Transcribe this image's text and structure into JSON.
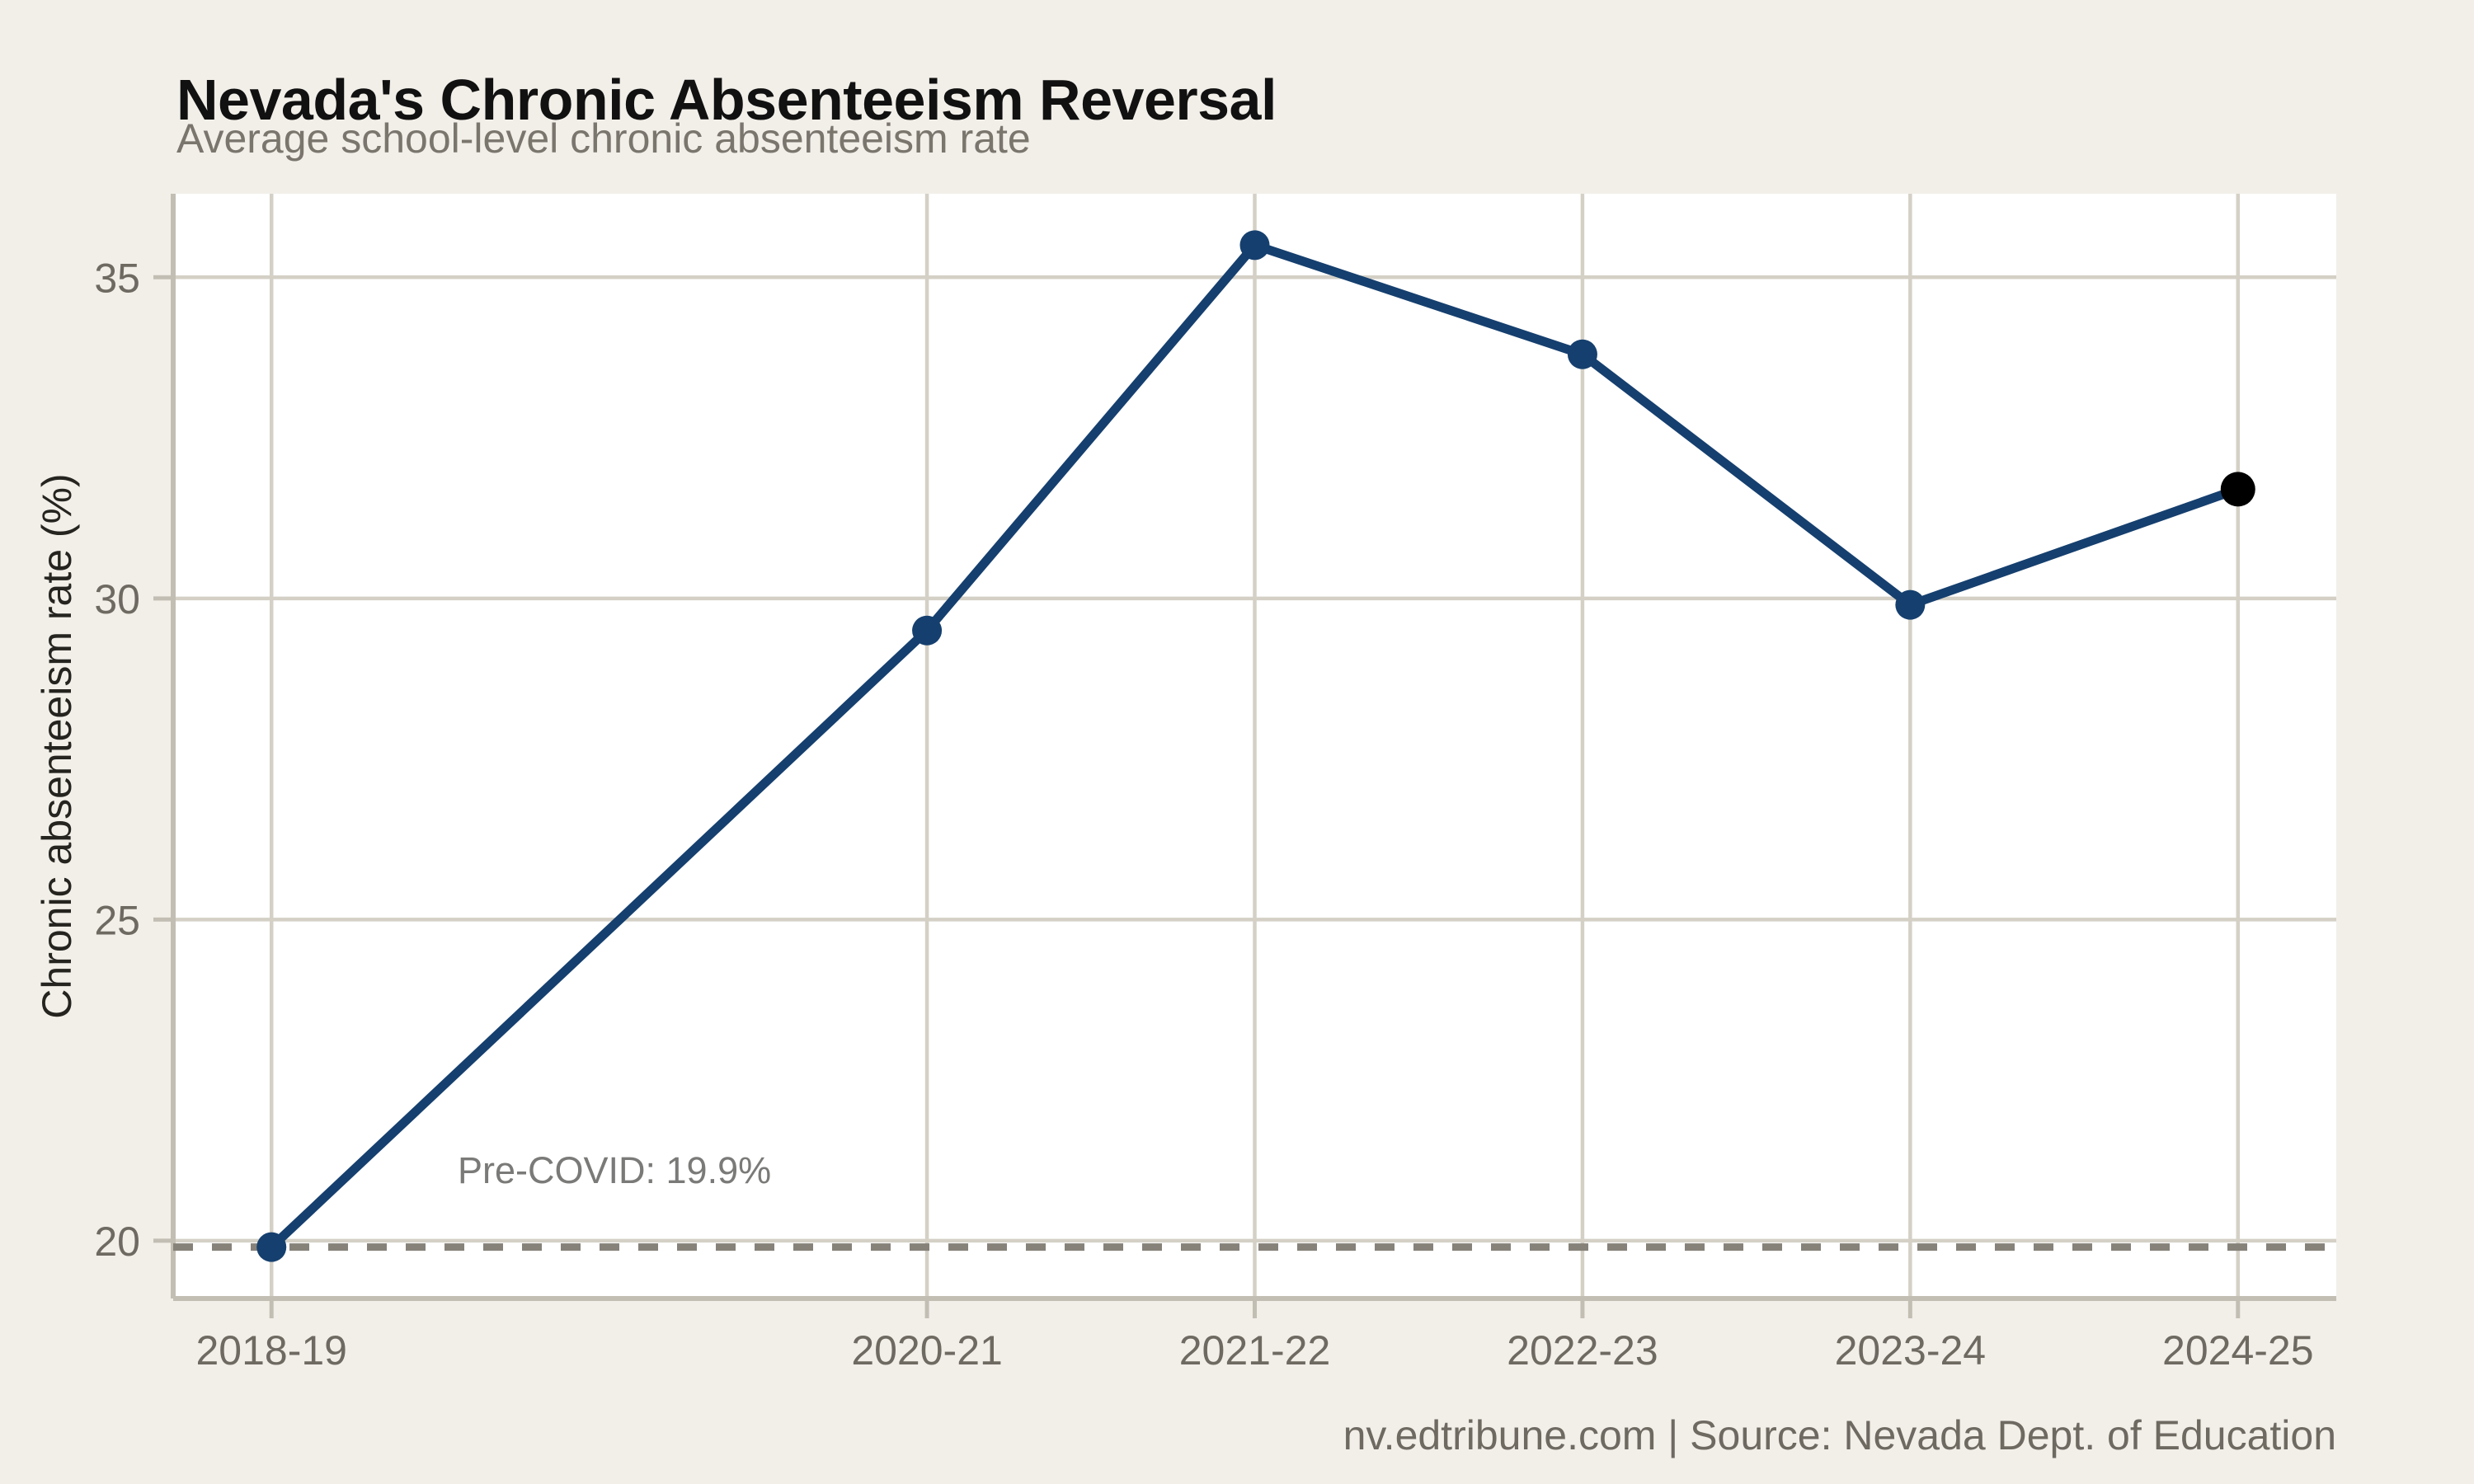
{
  "chart_data": {
    "type": "line",
    "title": "Nevada's Chronic Absenteeism Reversal",
    "subtitle": "Average school-level chronic absenteeism rate",
    "ylabel": "Chronic absenteeism rate (%)",
    "xlabel": "",
    "categories": [
      "2018-19",
      "2020-21",
      "2021-22",
      "2022-23",
      "2023-24",
      "2024-25"
    ],
    "x_year_index": [
      0,
      2,
      3,
      4,
      5,
      6
    ],
    "values": [
      19.9,
      29.5,
      35.5,
      33.8,
      29.9,
      31.7
    ],
    "yticks": [
      20,
      25,
      30,
      35
    ],
    "ylim": [
      19.1,
      36.3
    ],
    "xlim_index": [
      -0.3,
      6.3
    ],
    "grid": true,
    "legend": "none",
    "reference_line": {
      "value": 19.9,
      "label": "Pre-COVID: 19.9%",
      "style": "dashed"
    },
    "highlight": {
      "category": "2024-25",
      "value": 31.7,
      "color": "#000000"
    },
    "colors": {
      "line": "#153f6e",
      "point": "#153f6e",
      "highlight_point": "#000000",
      "background": "#f2efe9",
      "panel": "#ffffff",
      "grid": "#d4d0c6",
      "axis": "#c3beb3",
      "tick_text": "#6e6a62",
      "reference": "#86827a"
    },
    "source_line": "nv.edtribune.com | Source: Nevada Dept. of Education"
  }
}
